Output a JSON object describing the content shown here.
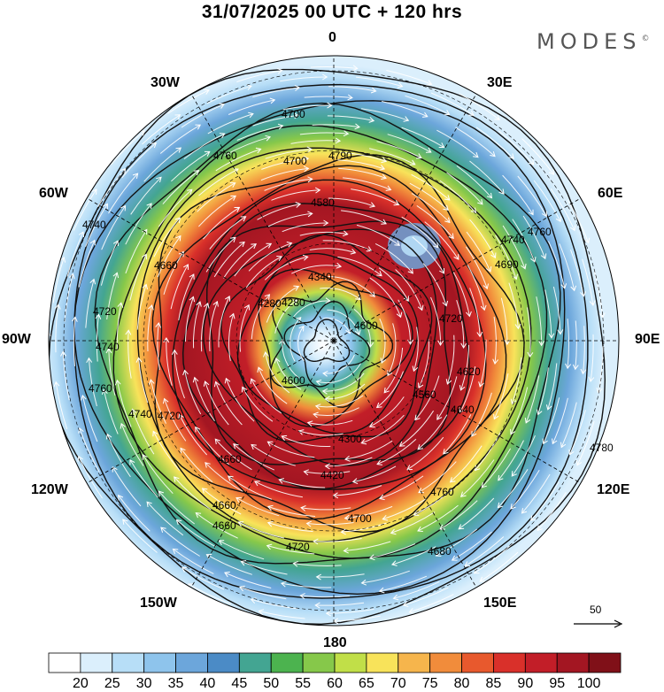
{
  "header": {
    "title": "31/07/2025  00 UTC  + 120 hrs",
    "brand": "MODES",
    "brand_mark": "©"
  },
  "map": {
    "projection": "polar stereographic (south pole)",
    "longitude_labels": [
      "0",
      "30E",
      "60E",
      "90E",
      "120E",
      "150E",
      "180",
      "150W",
      "120W",
      "90W",
      "60W",
      "30W"
    ],
    "contour_labels": [
      "4700",
      "4760",
      "4700",
      "4790",
      "4580",
      "4280",
      "4740",
      "4660",
      "4340",
      "4280",
      "4600",
      "4690",
      "4720",
      "4740",
      "4760",
      "4740",
      "4720",
      "4660",
      "4600",
      "4300",
      "4420",
      "4560",
      "4620",
      "4640",
      "4660",
      "4660",
      "4720",
      "4720",
      "4740",
      "4760",
      "4700",
      "4680",
      "4760",
      "4780"
    ],
    "reference_vector_value": "50"
  },
  "colorbar": {
    "ticks": [
      "20",
      "25",
      "30",
      "35",
      "40",
      "45",
      "50",
      "55",
      "60",
      "65",
      "70",
      "75",
      "80",
      "85",
      "90",
      "95",
      "100"
    ],
    "colors": [
      "#ffffff",
      "#dbeffc",
      "#b7def7",
      "#8ec4ec",
      "#6ca6db",
      "#4b8bc6",
      "#43a592",
      "#4cb34f",
      "#86c84a",
      "#c1df48",
      "#f8e35a",
      "#f6b54c",
      "#f18c3b",
      "#e8592d",
      "#d9302a",
      "#c21e28",
      "#a31622",
      "#801018"
    ]
  }
}
